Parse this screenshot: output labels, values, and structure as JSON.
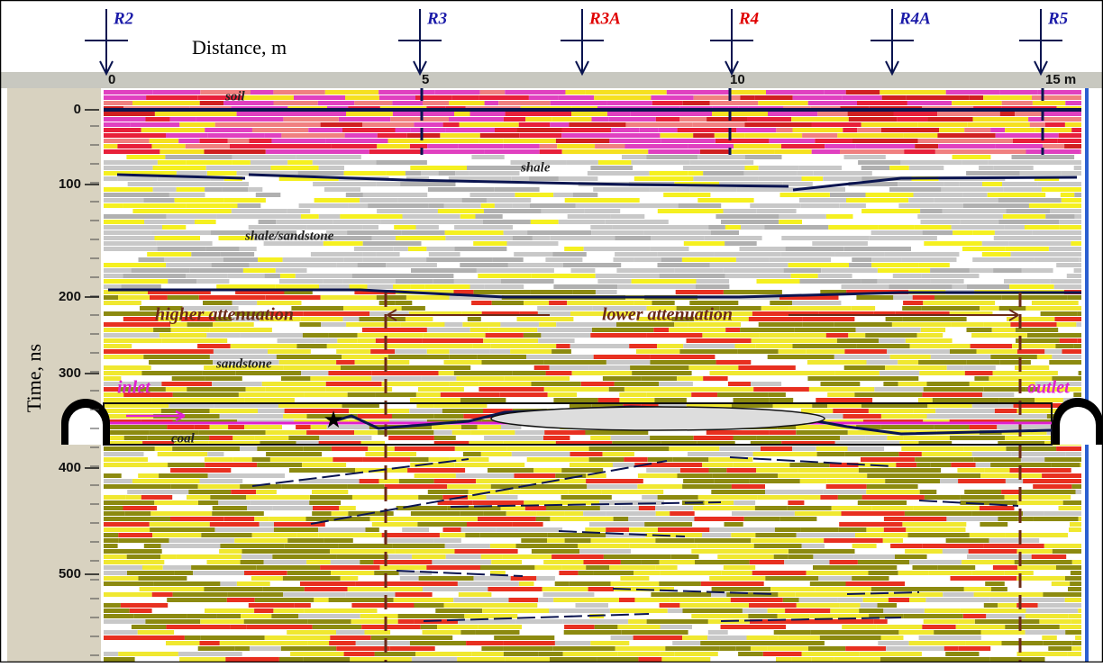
{
  "x_axis": {
    "label": "Distance, m",
    "ticks": [
      0,
      5,
      10,
      {
        "value": 15,
        "label": "15 m"
      }
    ]
  },
  "y_axis": {
    "label": "Time, ns",
    "ticks": [
      0,
      100,
      200,
      300,
      400,
      500
    ]
  },
  "receivers": [
    {
      "label": "R2",
      "color": "#1a1aa8"
    },
    {
      "label": "R3",
      "color": "#1a1aa8"
    },
    {
      "label": "R3A",
      "color": "#e00000"
    },
    {
      "label": "R4",
      "color": "#e00000"
    },
    {
      "label": "R4A",
      "color": "#1a1aa8"
    },
    {
      "label": "R5",
      "color": "#1a1aa8"
    }
  ],
  "layers": [
    "soil",
    "shale",
    "shale/sandstone",
    "sandstone",
    "coal"
  ],
  "zones": [
    "higher attenuation",
    "lower attenuation"
  ],
  "portals": [
    "inlet",
    "outlet"
  ]
}
